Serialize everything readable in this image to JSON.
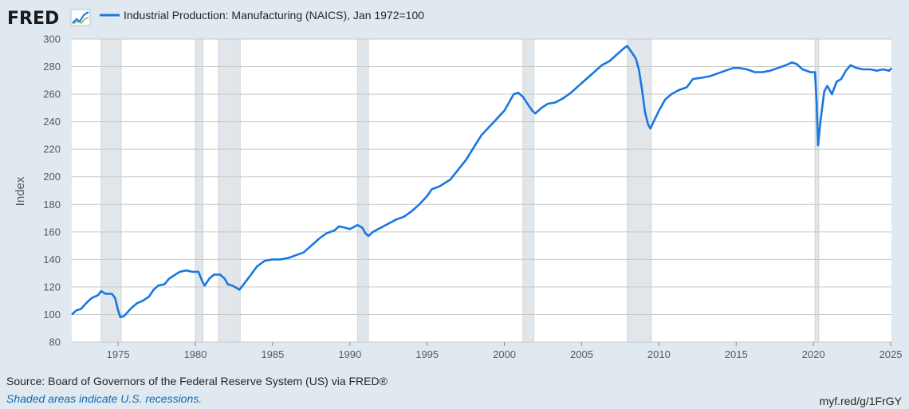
{
  "logo": {
    "text": "FRED",
    "icon": "fred-chart-icon"
  },
  "colors": {
    "series": "#1877e0",
    "recession": "#e1e6ea",
    "grid": "#c9c9c9",
    "background": "#e1e9f0"
  },
  "footer": {
    "source": "Source: Board of Governors of the Federal Reserve System (US) via FRED®",
    "note": "Shaded areas indicate U.S. recessions.",
    "link": "myf.red/g/1FrGY"
  },
  "chart_data": {
    "type": "line",
    "title": "",
    "xlabel": "",
    "ylabel": "Index",
    "xlim": [
      1972,
      2025.05
    ],
    "ylim": [
      80,
      300
    ],
    "grid": true,
    "y_ticks": [
      80,
      100,
      120,
      140,
      160,
      180,
      200,
      220,
      240,
      260,
      280,
      300
    ],
    "x_ticks": [
      1975,
      1980,
      1985,
      1990,
      1995,
      2000,
      2005,
      2010,
      2015,
      2020,
      2025
    ],
    "recessions": [
      [
        1973.9,
        1975.2
      ],
      [
        1980.0,
        1980.5
      ],
      [
        1981.5,
        1982.9
      ],
      [
        1990.5,
        1991.2
      ],
      [
        2001.2,
        2001.9
      ],
      [
        2007.95,
        2009.5
      ],
      [
        2020.1,
        2020.35
      ]
    ],
    "series": [
      {
        "name": "Industrial Production: Manufacturing (NAICS), Jan 1972=100",
        "points": [
          [
            1972.0,
            100
          ],
          [
            1972.3,
            103
          ],
          [
            1972.6,
            104
          ],
          [
            1973.0,
            109
          ],
          [
            1973.3,
            112
          ],
          [
            1973.7,
            114
          ],
          [
            1973.9,
            117
          ],
          [
            1974.2,
            115
          ],
          [
            1974.6,
            115
          ],
          [
            1974.8,
            112
          ],
          [
            1975.0,
            103
          ],
          [
            1975.15,
            98
          ],
          [
            1975.4,
            99
          ],
          [
            1975.8,
            104
          ],
          [
            1976.2,
            108
          ],
          [
            1976.6,
            110
          ],
          [
            1977.0,
            113
          ],
          [
            1977.3,
            118
          ],
          [
            1977.6,
            121
          ],
          [
            1978.0,
            122
          ],
          [
            1978.3,
            126
          ],
          [
            1978.7,
            129
          ],
          [
            1979.0,
            131
          ],
          [
            1979.4,
            132
          ],
          [
            1979.8,
            131
          ],
          [
            1980.2,
            131
          ],
          [
            1980.45,
            124
          ],
          [
            1980.6,
            121
          ],
          [
            1980.9,
            126
          ],
          [
            1981.2,
            129
          ],
          [
            1981.6,
            129
          ],
          [
            1981.9,
            126
          ],
          [
            1982.1,
            122
          ],
          [
            1982.4,
            121
          ],
          [
            1982.7,
            119
          ],
          [
            1982.85,
            118
          ],
          [
            1983.2,
            123
          ],
          [
            1983.6,
            129
          ],
          [
            1984.0,
            135
          ],
          [
            1984.5,
            139
          ],
          [
            1985.0,
            140
          ],
          [
            1985.5,
            140
          ],
          [
            1986.0,
            141
          ],
          [
            1986.5,
            143
          ],
          [
            1987.0,
            145
          ],
          [
            1987.5,
            150
          ],
          [
            1988.0,
            155
          ],
          [
            1988.5,
            159
          ],
          [
            1989.0,
            161
          ],
          [
            1989.3,
            164
          ],
          [
            1989.7,
            163
          ],
          [
            1990.0,
            162
          ],
          [
            1990.5,
            165
          ],
          [
            1990.8,
            163
          ],
          [
            1991.0,
            159
          ],
          [
            1991.2,
            157
          ],
          [
            1991.5,
            160
          ],
          [
            1992.0,
            163
          ],
          [
            1992.5,
            166
          ],
          [
            1993.0,
            169
          ],
          [
            1993.5,
            171
          ],
          [
            1994.0,
            175
          ],
          [
            1994.5,
            180
          ],
          [
            1995.0,
            186
          ],
          [
            1995.3,
            191
          ],
          [
            1995.8,
            193
          ],
          [
            1996.5,
            198
          ],
          [
            1997.0,
            205
          ],
          [
            1997.5,
            212
          ],
          [
            1998.0,
            221
          ],
          [
            1998.5,
            230
          ],
          [
            1999.0,
            236
          ],
          [
            1999.5,
            242
          ],
          [
            2000.0,
            248
          ],
          [
            2000.3,
            254
          ],
          [
            2000.6,
            260
          ],
          [
            2000.9,
            261
          ],
          [
            2001.2,
            258
          ],
          [
            2001.5,
            253
          ],
          [
            2001.8,
            248
          ],
          [
            2002.0,
            246
          ],
          [
            2002.4,
            250
          ],
          [
            2002.8,
            253
          ],
          [
            2003.3,
            254
          ],
          [
            2003.8,
            257
          ],
          [
            2004.3,
            261
          ],
          [
            2004.8,
            266
          ],
          [
            2005.3,
            271
          ],
          [
            2005.8,
            276
          ],
          [
            2006.3,
            281
          ],
          [
            2006.8,
            284
          ],
          [
            2007.3,
            289
          ],
          [
            2007.7,
            293
          ],
          [
            2007.95,
            295
          ],
          [
            2008.2,
            291
          ],
          [
            2008.5,
            286
          ],
          [
            2008.7,
            278
          ],
          [
            2008.9,
            264
          ],
          [
            2009.1,
            247
          ],
          [
            2009.3,
            238
          ],
          [
            2009.45,
            235
          ],
          [
            2009.7,
            241
          ],
          [
            2010.0,
            248
          ],
          [
            2010.4,
            256
          ],
          [
            2010.8,
            260
          ],
          [
            2011.3,
            263
          ],
          [
            2011.8,
            265
          ],
          [
            2012.2,
            271
          ],
          [
            2012.8,
            272
          ],
          [
            2013.3,
            273
          ],
          [
            2013.8,
            275
          ],
          [
            2014.3,
            277
          ],
          [
            2014.8,
            279
          ],
          [
            2015.2,
            279
          ],
          [
            2015.7,
            278
          ],
          [
            2016.2,
            276
          ],
          [
            2016.7,
            276
          ],
          [
            2017.2,
            277
          ],
          [
            2017.7,
            279
          ],
          [
            2018.2,
            281
          ],
          [
            2018.6,
            283
          ],
          [
            2018.9,
            282
          ],
          [
            2019.3,
            278
          ],
          [
            2019.8,
            276
          ],
          [
            2020.1,
            276
          ],
          [
            2020.2,
            256
          ],
          [
            2020.3,
            223
          ],
          [
            2020.45,
            240
          ],
          [
            2020.7,
            262
          ],
          [
            2020.9,
            266
          ],
          [
            2021.2,
            260
          ],
          [
            2021.5,
            269
          ],
          [
            2021.8,
            271
          ],
          [
            2022.1,
            277
          ],
          [
            2022.4,
            281
          ],
          [
            2022.8,
            279
          ],
          [
            2023.2,
            278
          ],
          [
            2023.7,
            278
          ],
          [
            2024.1,
            277
          ],
          [
            2024.5,
            278
          ],
          [
            2024.9,
            277
          ],
          [
            2025.05,
            279
          ]
        ]
      }
    ]
  }
}
